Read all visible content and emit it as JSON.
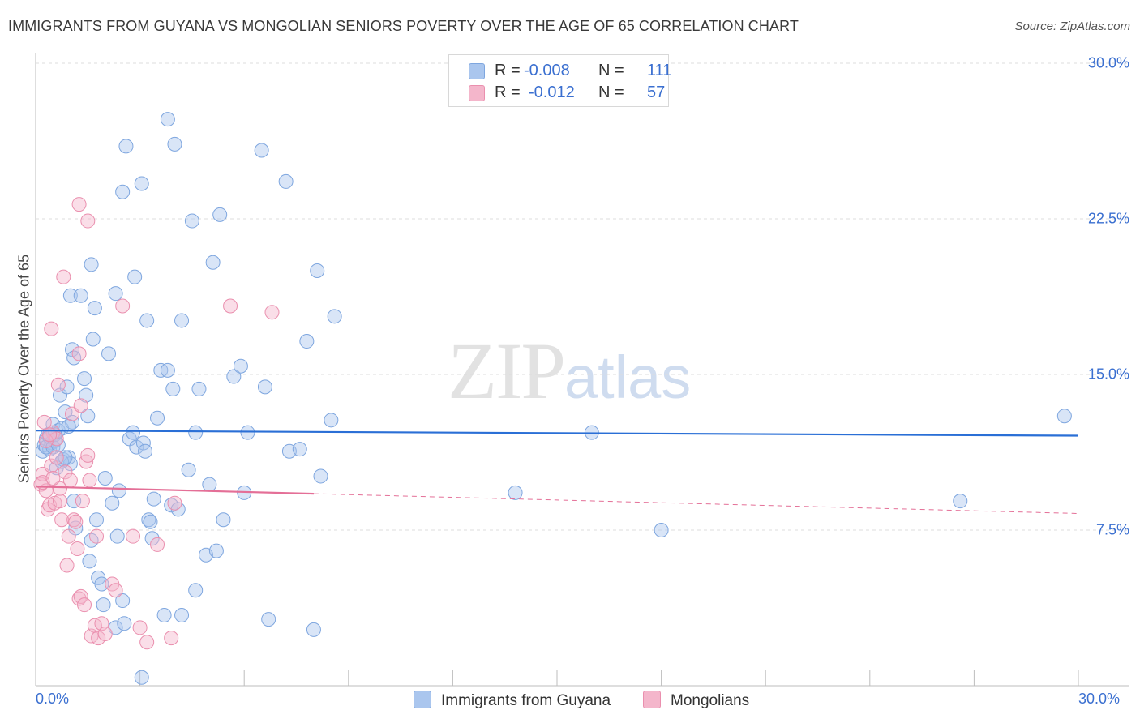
{
  "header": {
    "title": "IMMIGRANTS FROM GUYANA VS MONGOLIAN SENIORS POVERTY OVER THE AGE OF 65 CORRELATION CHART",
    "source": "Source: ZipAtlas.com"
  },
  "watermark": {
    "zip": "ZIP",
    "atlas": "atlas"
  },
  "legend": {
    "rows": [
      {
        "r_label": "R =",
        "r_value": "-0.008",
        "n_label": "N =",
        "n_value": "111"
      },
      {
        "r_label": "R =",
        "r_value": "-0.012",
        "n_label": "N =",
        "n_value": "57"
      }
    ]
  },
  "colors": {
    "blue_fill": "#aac6ee",
    "blue_stroke": "#7ea6df",
    "blue_line": "#2a6fd6",
    "pink_fill": "#f4b6cb",
    "pink_stroke": "#ea8fae",
    "pink_line": "#e46f97",
    "grid": "#dcdcdc",
    "tick_text": "#3a6fd0"
  },
  "chart_data": {
    "type": "scatter",
    "title": "IMMIGRANTS FROM GUYANA VS MONGOLIAN SENIORS POVERTY OVER THE AGE OF 65 CORRELATION CHART",
    "xlabel": "",
    "ylabel": "Seniors Poverty Over the Age of 65",
    "xlim": [
      0,
      30
    ],
    "ylim": [
      0,
      30
    ],
    "x_tick_labels": [
      "0.0%",
      "30.0%"
    ],
    "y_ticks": [
      7.5,
      15.0,
      22.5,
      30.0
    ],
    "y_tick_labels": [
      "7.5%",
      "15.0%",
      "22.5%",
      "30.0%"
    ],
    "grid": true,
    "legend_position": "top-center",
    "series": [
      {
        "name": "Immigrants from Guyana",
        "color": "#aac6ee",
        "trend": {
          "x0": 0,
          "y0": 12.3,
          "x1": 30,
          "y1": 12.05,
          "dashed_from": null
        },
        "points": [
          [
            0.2,
            11.3
          ],
          [
            0.25,
            11.6
          ],
          [
            0.3,
            11.9
          ],
          [
            0.35,
            12.1
          ],
          [
            0.4,
            11.4
          ],
          [
            0.45,
            11.7
          ],
          [
            0.5,
            12.6
          ],
          [
            0.55,
            11.8
          ],
          [
            0.6,
            10.5
          ],
          [
            0.65,
            12.3
          ],
          [
            0.7,
            14.0
          ],
          [
            0.75,
            12.4
          ],
          [
            0.8,
            10.9
          ],
          [
            0.85,
            13.2
          ],
          [
            0.9,
            14.4
          ],
          [
            0.95,
            11.0
          ],
          [
            1.0,
            10.7
          ],
          [
            1.05,
            12.7
          ],
          [
            1.1,
            8.9
          ],
          [
            1.15,
            7.6
          ],
          [
            1.0,
            18.8
          ],
          [
            1.05,
            16.2
          ],
          [
            1.1,
            15.8
          ],
          [
            1.3,
            18.8
          ],
          [
            1.4,
            14.8
          ],
          [
            1.45,
            14.0
          ],
          [
            1.5,
            13.0
          ],
          [
            1.55,
            6.0
          ],
          [
            1.6,
            7.0
          ],
          [
            1.7,
            18.2
          ],
          [
            1.6,
            20.3
          ],
          [
            1.65,
            16.7
          ],
          [
            1.75,
            8.0
          ],
          [
            1.8,
            5.2
          ],
          [
            1.9,
            4.9
          ],
          [
            1.95,
            3.9
          ],
          [
            2.0,
            10.0
          ],
          [
            2.1,
            16.0
          ],
          [
            2.2,
            8.8
          ],
          [
            2.3,
            2.8
          ],
          [
            2.3,
            18.9
          ],
          [
            2.35,
            7.2
          ],
          [
            2.4,
            9.4
          ],
          [
            2.5,
            4.1
          ],
          [
            2.55,
            3.0
          ],
          [
            2.6,
            26.0
          ],
          [
            2.7,
            11.9
          ],
          [
            2.8,
            12.2
          ],
          [
            2.85,
            19.7
          ],
          [
            2.9,
            11.5
          ],
          [
            2.5,
            23.8
          ],
          [
            3.05,
            24.2
          ],
          [
            3.1,
            11.7
          ],
          [
            3.15,
            11.3
          ],
          [
            3.2,
            17.6
          ],
          [
            3.25,
            8.0
          ],
          [
            3.3,
            7.9
          ],
          [
            3.35,
            7.1
          ],
          [
            3.4,
            9.0
          ],
          [
            3.5,
            12.9
          ],
          [
            3.6,
            15.2
          ],
          [
            3.7,
            3.4
          ],
          [
            3.8,
            15.2
          ],
          [
            3.8,
            27.3
          ],
          [
            3.9,
            8.7
          ],
          [
            3.95,
            14.3
          ],
          [
            4.0,
            26.1
          ],
          [
            4.1,
            8.5
          ],
          [
            4.2,
            17.6
          ],
          [
            4.4,
            10.4
          ],
          [
            4.5,
            22.4
          ],
          [
            4.6,
            12.2
          ],
          [
            4.6,
            4.6
          ],
          [
            4.7,
            14.3
          ],
          [
            4.9,
            6.3
          ],
          [
            5.0,
            9.7
          ],
          [
            5.1,
            20.4
          ],
          [
            5.2,
            6.5
          ],
          [
            5.3,
            22.7
          ],
          [
            5.4,
            8.0
          ],
          [
            5.7,
            14.9
          ],
          [
            5.9,
            15.4
          ],
          [
            6.0,
            9.3
          ],
          [
            6.1,
            12.2
          ],
          [
            6.5,
            25.8
          ],
          [
            6.6,
            14.4
          ],
          [
            6.7,
            3.2
          ],
          [
            7.2,
            24.3
          ],
          [
            7.3,
            11.3
          ],
          [
            7.6,
            11.4
          ],
          [
            7.8,
            16.6
          ],
          [
            8.0,
            2.7
          ],
          [
            8.1,
            20.0
          ],
          [
            8.2,
            10.1
          ],
          [
            8.5,
            12.8
          ],
          [
            8.6,
            17.8
          ],
          [
            13.8,
            9.3
          ],
          [
            16.0,
            12.2
          ],
          [
            18.0,
            7.5
          ],
          [
            29.6,
            13.0
          ],
          [
            26.6,
            8.9
          ],
          [
            3.05,
            0.4
          ],
          [
            4.2,
            3.4
          ],
          [
            0.3,
            11.5
          ],
          [
            0.4,
            12.0
          ],
          [
            0.5,
            11.5
          ],
          [
            0.55,
            12.1
          ],
          [
            0.65,
            11.6
          ],
          [
            0.75,
            10.8
          ],
          [
            0.85,
            11.0
          ],
          [
            0.95,
            12.5
          ]
        ]
      },
      {
        "name": "Mongolians",
        "color": "#f4b6cb",
        "trend": {
          "x0": 0,
          "y0": 9.6,
          "x1": 30,
          "y1": 8.3,
          "dashed_from": 8.0
        },
        "points": [
          [
            0.15,
            9.7
          ],
          [
            0.2,
            10.2
          ],
          [
            0.25,
            12.7
          ],
          [
            0.3,
            9.4
          ],
          [
            0.35,
            8.5
          ],
          [
            0.4,
            8.7
          ],
          [
            0.45,
            10.6
          ],
          [
            0.5,
            12.2
          ],
          [
            0.55,
            8.8
          ],
          [
            0.6,
            11.9
          ],
          [
            0.65,
            14.5
          ],
          [
            0.7,
            9.5
          ],
          [
            0.75,
            8.0
          ],
          [
            0.8,
            19.7
          ],
          [
            0.85,
            10.3
          ],
          [
            0.9,
            5.8
          ],
          [
            0.95,
            7.2
          ],
          [
            1.0,
            9.9
          ],
          [
            1.05,
            13.1
          ],
          [
            1.1,
            8.0
          ],
          [
            1.15,
            7.9
          ],
          [
            1.2,
            6.6
          ],
          [
            1.25,
            4.2
          ],
          [
            1.3,
            4.3
          ],
          [
            1.35,
            8.9
          ],
          [
            1.4,
            3.9
          ],
          [
            1.45,
            10.8
          ],
          [
            1.5,
            11.1
          ],
          [
            1.55,
            9.9
          ],
          [
            1.6,
            2.4
          ],
          [
            1.7,
            2.9
          ],
          [
            1.75,
            7.2
          ],
          [
            1.8,
            2.3
          ],
          [
            1.9,
            3.0
          ],
          [
            2.0,
            2.5
          ],
          [
            2.2,
            4.9
          ],
          [
            2.3,
            4.6
          ],
          [
            2.5,
            18.3
          ],
          [
            2.8,
            7.2
          ],
          [
            3.0,
            2.8
          ],
          [
            3.2,
            2.1
          ],
          [
            3.5,
            6.8
          ],
          [
            3.9,
            2.3
          ],
          [
            4.0,
            8.8
          ],
          [
            1.25,
            23.2
          ],
          [
            1.5,
            22.4
          ],
          [
            5.6,
            18.3
          ],
          [
            6.8,
            18.0
          ],
          [
            0.2,
            9.8
          ],
          [
            0.3,
            11.8
          ],
          [
            0.4,
            12.1
          ],
          [
            0.5,
            10.0
          ],
          [
            0.6,
            11.0
          ],
          [
            0.45,
            17.2
          ],
          [
            0.7,
            8.9
          ],
          [
            1.25,
            16.0
          ],
          [
            1.3,
            13.5
          ]
        ]
      }
    ]
  },
  "axis": {
    "x_left_label": "0.0%",
    "x_right_label": "30.0%"
  }
}
